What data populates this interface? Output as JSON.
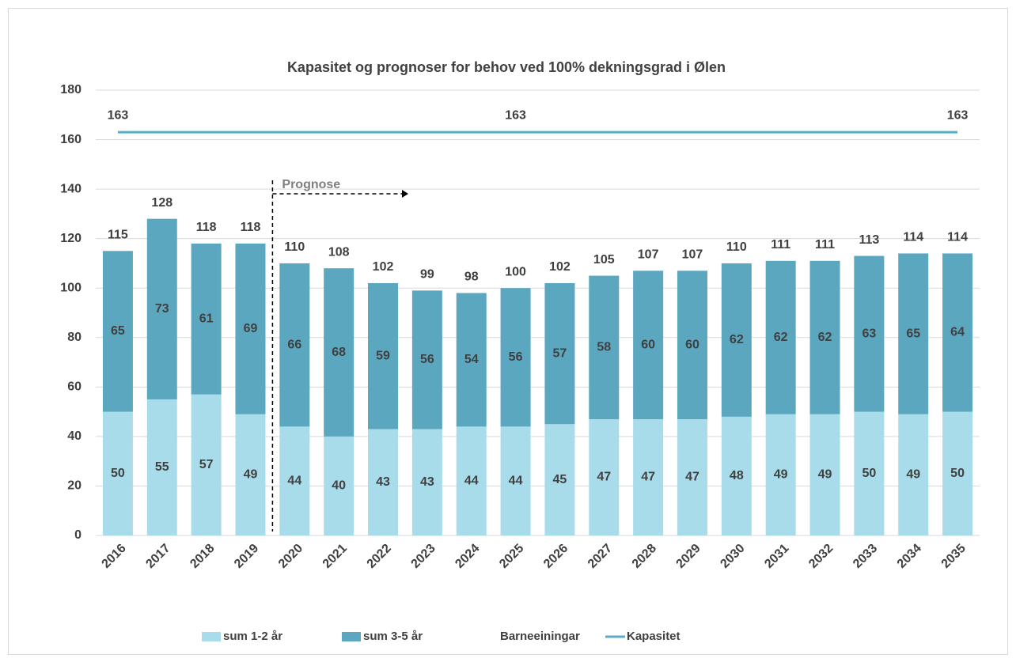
{
  "chart_data": {
    "type": "stacked-bar-line",
    "title": "Kapasitet og prognoser for behov ved 100% dekningsgrad i Ølen",
    "annotations": [
      {
        "text": "Prognose"
      }
    ],
    "categories": [
      "2016",
      "2017",
      "2018",
      "2019",
      "2020",
      "2021",
      "2022",
      "2023",
      "2024",
      "2025",
      "2026",
      "2027",
      "2028",
      "2029",
      "2030",
      "2031",
      "2032",
      "2033",
      "2034",
      "2035"
    ],
    "series": [
      {
        "name": "sum 1-2 år",
        "color": "#a9dcea",
        "values": [
          50,
          55,
          57,
          49,
          44,
          40,
          43,
          43,
          44,
          44,
          45,
          47,
          47,
          47,
          48,
          49,
          49,
          50,
          49,
          50
        ]
      },
      {
        "name": "sum 3-5 år",
        "color": "#5ba7c0",
        "values": [
          65,
          73,
          61,
          69,
          66,
          68,
          59,
          56,
          54,
          56,
          57,
          58,
          60,
          60,
          62,
          62,
          62,
          63,
          65,
          64
        ]
      },
      {
        "name": "Barneeiningar",
        "color": "none",
        "values": [
          115,
          128,
          118,
          118,
          110,
          108,
          102,
          99,
          98,
          100,
          102,
          105,
          107,
          107,
          110,
          111,
          111,
          113,
          114,
          114
        ]
      },
      {
        "name": "Kapasitet",
        "color": "#5aaec4",
        "type": "line",
        "values": [
          163,
          163,
          163,
          163,
          163,
          163,
          163,
          163,
          163,
          163,
          163,
          163,
          163,
          163,
          163,
          163,
          163,
          163,
          163,
          163
        ],
        "labeled": [
          0,
          9,
          19
        ]
      }
    ],
    "ylim": [
      0,
      180
    ],
    "yticks": [
      0,
      20,
      40,
      60,
      80,
      100,
      120,
      140,
      160,
      180
    ],
    "grid": true,
    "legend": "bottom"
  }
}
